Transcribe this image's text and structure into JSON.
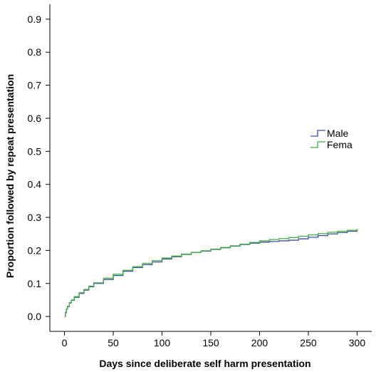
{
  "chart_data": {
    "type": "line",
    "title": "",
    "xlabel": "Days since deliberate self harm presentation",
    "ylabel": "Proportion followed by repeat presentation",
    "xlim": [
      -15,
      315
    ],
    "ylim": [
      -0.045,
      0.945
    ],
    "x_ticks": [
      0,
      50,
      100,
      150,
      200,
      250,
      300
    ],
    "x_tick_labels": [
      "0",
      "50",
      "100",
      "150",
      "200",
      "250",
      "300"
    ],
    "y_ticks": [
      0.0,
      0.1,
      0.2,
      0.3,
      0.4,
      0.5,
      0.6,
      0.7,
      0.8,
      0.9
    ],
    "y_tick_labels": [
      "0.0",
      "0.1",
      "0.2",
      "0.3",
      "0.4",
      "0.5",
      "0.6",
      "0.7",
      "0.8",
      "0.9"
    ],
    "grid": false,
    "step": true,
    "legend": {
      "position": "right",
      "entries": [
        "Male",
        "Fema"
      ]
    },
    "series": [
      {
        "name": "Male",
        "color": "#3d4fa3",
        "x": [
          0,
          1,
          2,
          3,
          5,
          7,
          10,
          15,
          20,
          25,
          30,
          40,
          50,
          60,
          70,
          80,
          90,
          100,
          110,
          120,
          130,
          140,
          150,
          160,
          170,
          180,
          190,
          200,
          210,
          220,
          230,
          240,
          250,
          260,
          270,
          280,
          290,
          300
        ],
        "y": [
          0.0,
          0.012,
          0.022,
          0.03,
          0.041,
          0.049,
          0.058,
          0.07,
          0.08,
          0.09,
          0.1,
          0.112,
          0.124,
          0.137,
          0.148,
          0.157,
          0.165,
          0.174,
          0.181,
          0.188,
          0.194,
          0.198,
          0.203,
          0.208,
          0.213,
          0.218,
          0.222,
          0.225,
          0.227,
          0.229,
          0.231,
          0.235,
          0.24,
          0.245,
          0.25,
          0.254,
          0.258,
          0.262
        ]
      },
      {
        "name": "Fema",
        "color": "#3cae43",
        "x": [
          0,
          1,
          2,
          3,
          5,
          7,
          10,
          15,
          20,
          25,
          30,
          40,
          50,
          60,
          70,
          80,
          90,
          100,
          110,
          120,
          130,
          140,
          150,
          160,
          170,
          180,
          190,
          200,
          210,
          220,
          230,
          240,
          250,
          260,
          270,
          280,
          290,
          300
        ],
        "y": [
          0.0,
          0.013,
          0.023,
          0.031,
          0.042,
          0.05,
          0.06,
          0.072,
          0.082,
          0.092,
          0.102,
          0.116,
          0.128,
          0.14,
          0.151,
          0.161,
          0.169,
          0.177,
          0.183,
          0.189,
          0.194,
          0.199,
          0.204,
          0.209,
          0.214,
          0.219,
          0.224,
          0.229,
          0.233,
          0.236,
          0.239,
          0.243,
          0.247,
          0.251,
          0.255,
          0.258,
          0.261,
          0.265
        ]
      }
    ]
  }
}
